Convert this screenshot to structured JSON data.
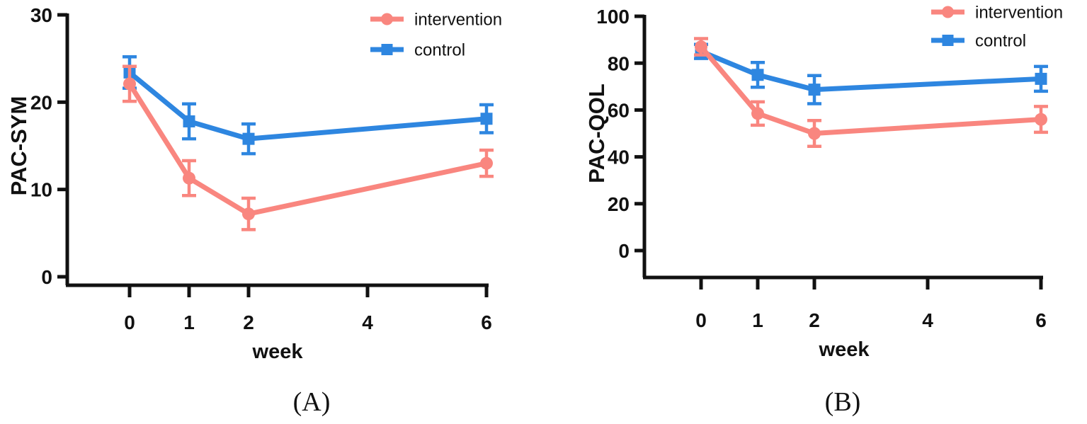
{
  "figure": {
    "background": "#ffffff"
  },
  "colors": {
    "intervention": "#F9867F",
    "control": "#2E86E0",
    "axis": "#111111",
    "text": "#111111"
  },
  "chart_data": [
    {
      "type": "line",
      "caption": "(A)",
      "title": "",
      "ylabel": "PAC-SYM",
      "xlabel": "week",
      "ylim": [
        0,
        30
      ],
      "y_ticks": [
        "0",
        "10",
        "20",
        "30"
      ],
      "y_tick_values": [
        0,
        10,
        20,
        30
      ],
      "x_ticks": [
        "0",
        "1",
        "2",
        "4",
        "6"
      ],
      "x_tick_values": [
        0,
        1,
        2,
        4,
        6
      ],
      "x": [
        0,
        1,
        2,
        6
      ],
      "grid": false,
      "legend_position": "top-right",
      "series": [
        {
          "name": "intervention",
          "color": "#F9867F",
          "marker": "circle",
          "values": [
            22.1,
            11.3,
            7.2,
            13.0
          ],
          "errors": [
            2.0,
            2.0,
            1.8,
            1.5
          ]
        },
        {
          "name": "control",
          "color": "#2E86E0",
          "marker": "square",
          "values": [
            23.4,
            17.8,
            15.8,
            18.1
          ],
          "errors": [
            1.8,
            2.0,
            1.7,
            1.6
          ]
        }
      ]
    },
    {
      "type": "line",
      "caption": "(B)",
      "title": "",
      "ylabel": "PAC-QOL",
      "xlabel": "week",
      "ylim": [
        0,
        100
      ],
      "y_ticks": [
        "0",
        "20",
        "40",
        "60",
        "80",
        "100"
      ],
      "y_tick_values": [
        0,
        20,
        40,
        60,
        80,
        100
      ],
      "x_ticks": [
        "0",
        "1",
        "2",
        "4",
        "6"
      ],
      "x_tick_values": [
        0,
        1,
        2,
        4,
        6
      ],
      "x": [
        0,
        1,
        2,
        6
      ],
      "grid": false,
      "legend_position": "top-right",
      "series": [
        {
          "name": "intervention",
          "color": "#F9867F",
          "marker": "circle",
          "values": [
            87.0,
            58.5,
            50.0,
            56.0
          ],
          "errors": [
            3.5,
            5.0,
            5.5,
            5.5
          ]
        },
        {
          "name": "control",
          "color": "#2E86E0",
          "marker": "square",
          "values": [
            85.0,
            75.0,
            68.7,
            73.3
          ],
          "errors": [
            3.0,
            5.3,
            6.0,
            5.3
          ]
        }
      ]
    }
  ]
}
